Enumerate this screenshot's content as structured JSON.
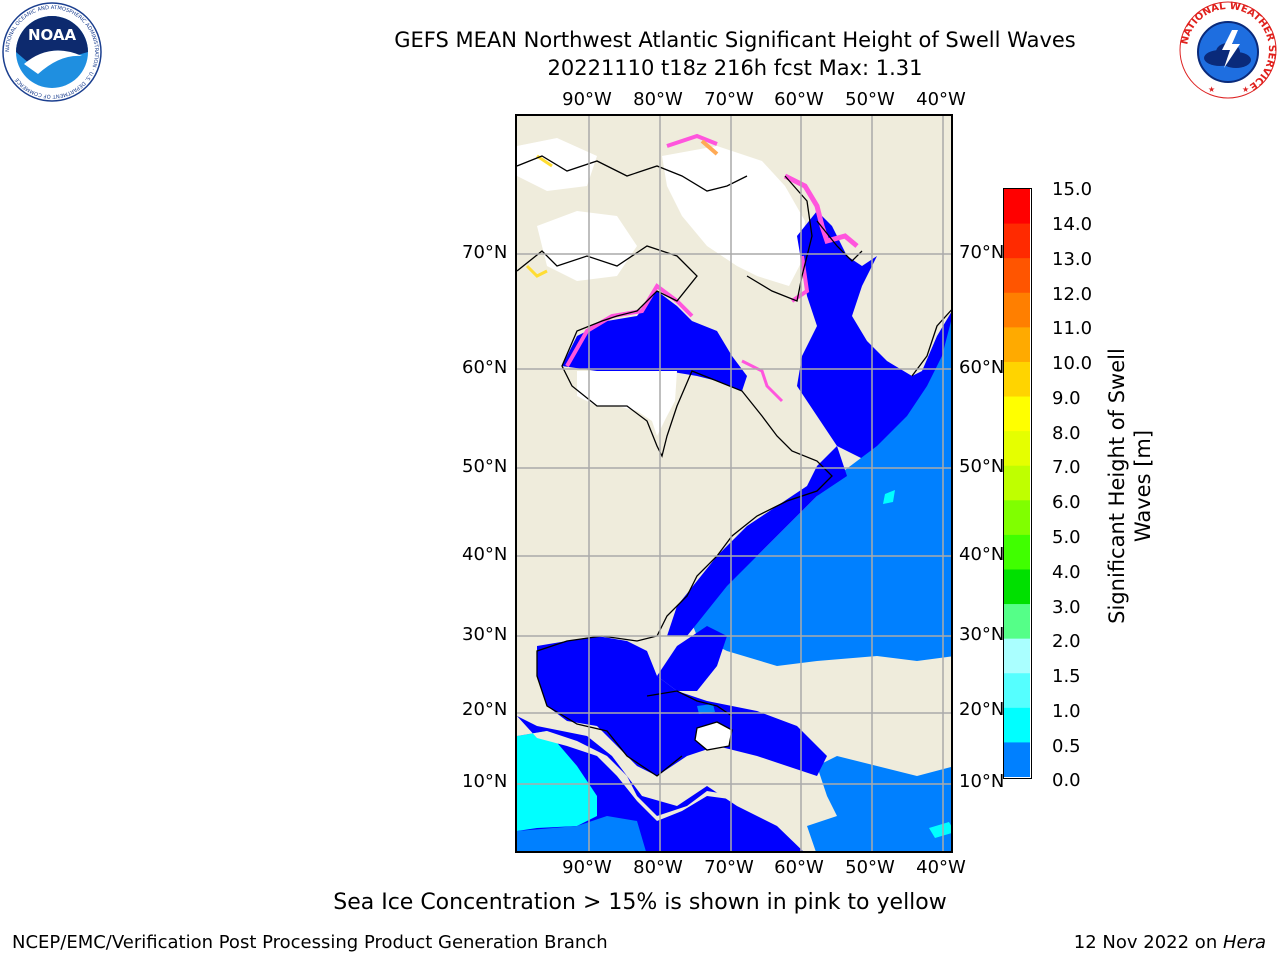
{
  "header": {
    "title_line1": "GEFS MEAN Northwest Atlantic Significant Height of Swell Waves",
    "title_line2": "20221110 t18z 216h fcst   Max: 1.31"
  },
  "logos": {
    "noaa_text": "NOAA",
    "noaa_ring_text": "NATIONAL OCEANIC AND ATMOSPHERIC ADMINISTRATION · U.S. DEPARTMENT OF COMMERCE",
    "nws_ring_text": "NATIONAL WEATHER SERVICE"
  },
  "map": {
    "lon_labels": [
      "90°W",
      "80°W",
      "70°W",
      "60°W",
      "50°W",
      "40°W"
    ],
    "lat_labels": [
      "70°N",
      "60°N",
      "50°N",
      "40°N",
      "30°N",
      "20°N",
      "10°N"
    ],
    "colors": {
      "land": "#efecdc",
      "ice": "#ffffff",
      "wave_0_0_5": "#0000ff",
      "wave_0_5_1_0": "#0080ff",
      "wave_1_0_1_5": "#00ffff",
      "ice_edge_pink": "#ff55dd",
      "ice_edge_orange": "#ffaa55",
      "grid": "#aaaaaa"
    }
  },
  "colorbar": {
    "ticks": [
      "15.0",
      "14.0",
      "13.0",
      "12.0",
      "11.0",
      "10.0",
      "9.0",
      "8.0",
      "7.0",
      "6.0",
      "5.0",
      "4.0",
      "3.0",
      "2.0",
      "1.5",
      "1.0",
      "0.5",
      "0.0"
    ],
    "colors_top_to_bottom": [
      "#ff0000",
      "#ff2a00",
      "#ff5500",
      "#ff7f00",
      "#ffaa00",
      "#ffd400",
      "#ffff00",
      "#e5ff00",
      "#bfff00",
      "#80ff00",
      "#40ff00",
      "#00e000",
      "#55ff88",
      "#aaffff",
      "#55ffff",
      "#00ffff",
      "#0080ff",
      "#0000ff"
    ],
    "label": "Significant Height of Swell Waves [m]"
  },
  "footer": {
    "note": "Sea Ice Concentration > 15% is shown in pink to yellow",
    "left": "NCEP/EMC/Verification Post Processing Product Generation Branch",
    "right_date": "12 Nov 2022 on ",
    "right_host": "Hera"
  }
}
